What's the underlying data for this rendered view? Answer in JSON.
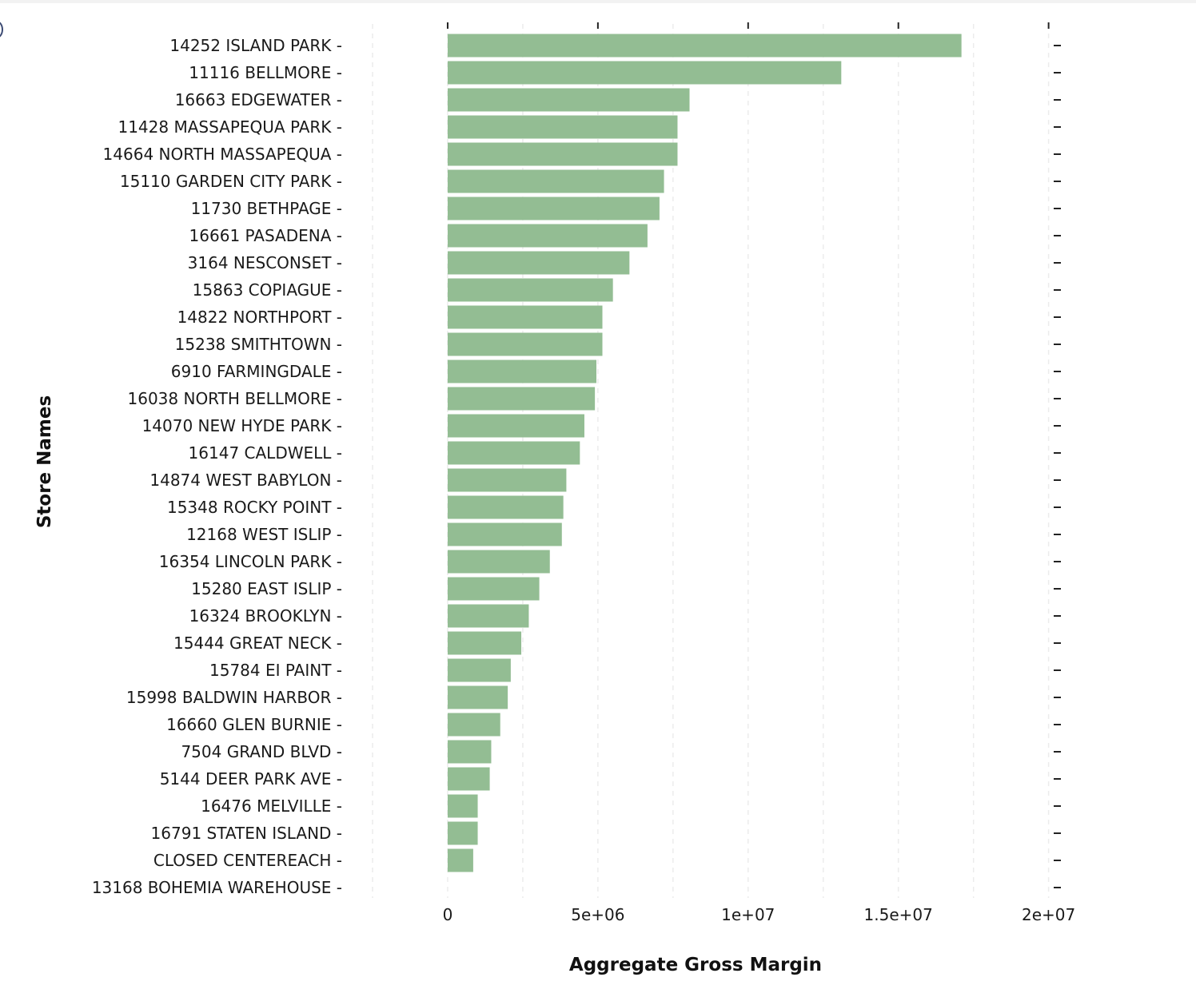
{
  "chart_data": {
    "type": "bar",
    "orientation": "horizontal",
    "xlabel": "Aggregate Gross Margin",
    "ylabel": "Store Names",
    "xlim": [
      -2500000,
      21500000
    ],
    "x_ticks": [
      0,
      5000000,
      10000000,
      15000000,
      20000000
    ],
    "x_tick_labels": [
      "0",
      "5e+06",
      "1e+07",
      "1.5e+07",
      "2e+07"
    ],
    "grid": "vertical dashed",
    "bar_color": "#93bd93",
    "categories": [
      "14252 ISLAND PARK",
      "11116 BELLMORE",
      "16663 EDGEWATER",
      "11428 MASSAPEQUA PARK",
      "14664 NORTH MASSAPEQUA",
      "15110 GARDEN CITY PARK",
      "11730 BETHPAGE",
      "16661 PASADENA",
      "3164 NESCONSET",
      "15863 COPIAGUE",
      "14822 NORTHPORT",
      "15238 SMITHTOWN",
      "6910 FARMINGDALE",
      "16038 NORTH BELLMORE",
      "14070 NEW HYDE PARK",
      "16147 CALDWELL",
      "14874 WEST BABYLON",
      "15348 ROCKY POINT",
      "12168 WEST ISLIP",
      "16354 LINCOLN PARK",
      "15280 EAST ISLIP",
      "16324 BROOKLYN",
      "15444 GREAT NECK",
      "15784 EI PAINT",
      "15998 BALDWIN HARBOR",
      "16660 GLEN BURNIE",
      "7504 GRAND BLVD",
      "5144 DEER PARK AVE",
      "16476 MELVILLE",
      "16791 STATEN ISLAND",
      "CLOSED CENTEREACH",
      "13168 BOHEMIA WAREHOUSE"
    ],
    "values": [
      17100000,
      13100000,
      8050000,
      7650000,
      7650000,
      7200000,
      7050000,
      6650000,
      6050000,
      5500000,
      5150000,
      5150000,
      4950000,
      4900000,
      4550000,
      4400000,
      3950000,
      3850000,
      3800000,
      3400000,
      3050000,
      2700000,
      2450000,
      2100000,
      2000000,
      1750000,
      1450000,
      1400000,
      1000000,
      1000000,
      850000,
      0
    ]
  }
}
